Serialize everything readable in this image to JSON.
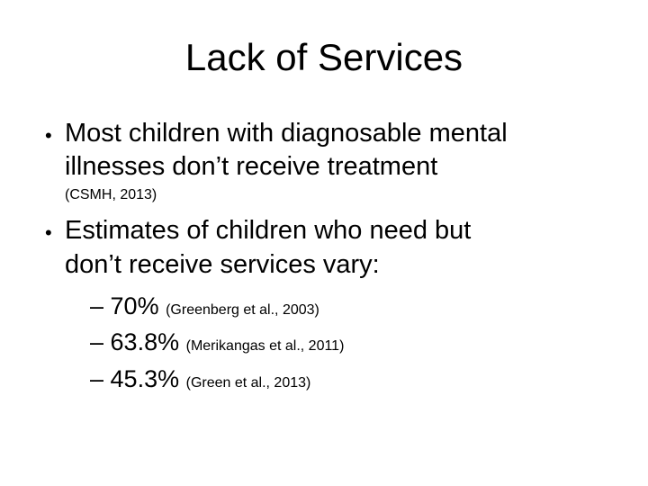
{
  "title": "Lack of Services",
  "bullets": [
    {
      "lines": [
        "Most children with diagnosable mental",
        "illnesses don’t receive treatment"
      ],
      "citation": "(CSMH, 2013)"
    },
    {
      "lines": [
        "Estimates of children who need but",
        "don’t receive services vary:"
      ],
      "items": [
        {
          "value": "70%",
          "source": "(Greenberg et al., 2003)"
        },
        {
          "value": "63.8%",
          "source": "(Merikangas et al., 2011)"
        },
        {
          "value": "45.3%",
          "source": "(Green et al., 2013)"
        }
      ]
    }
  ]
}
